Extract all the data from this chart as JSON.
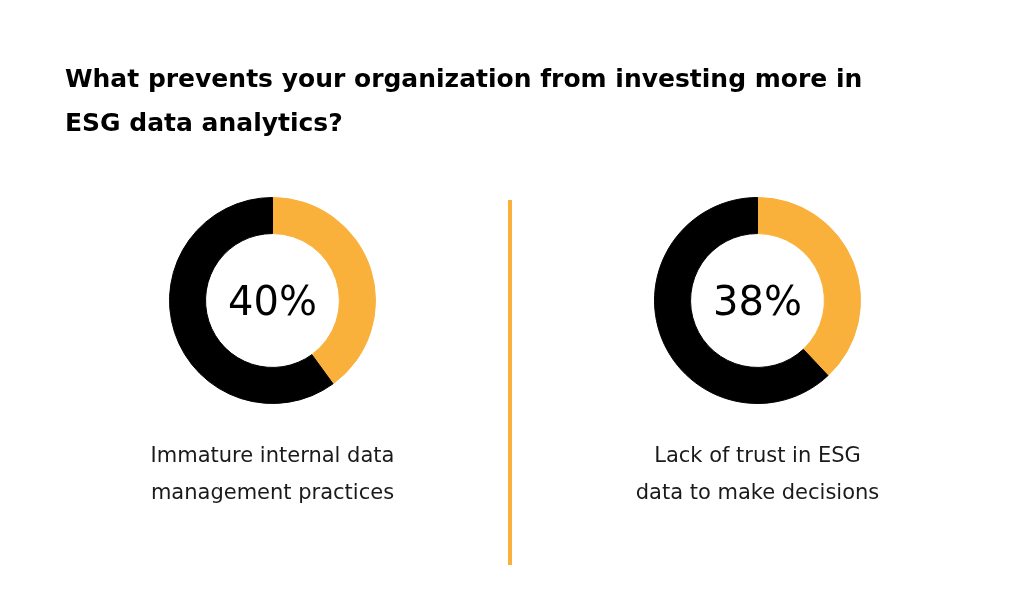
{
  "chart_data": [
    {
      "type": "donut",
      "title": "What prevents your organization from investing more in ESG data analytics?",
      "categories": [
        null,
        null
      ],
      "values": [
        40,
        60
      ],
      "colors": [
        "#f9b13c",
        "#000000"
      ],
      "annotations": [
        "40%",
        "Immature internal data management practices"
      ]
    },
    {
      "type": "donut",
      "categories": [
        null,
        null
      ],
      "values": [
        38,
        62
      ],
      "colors": [
        "#f9b13c",
        "#000000"
      ],
      "annotations": [
        "38%",
        "Lack of trust in ESG data to make decisions"
      ]
    }
  ]
}
